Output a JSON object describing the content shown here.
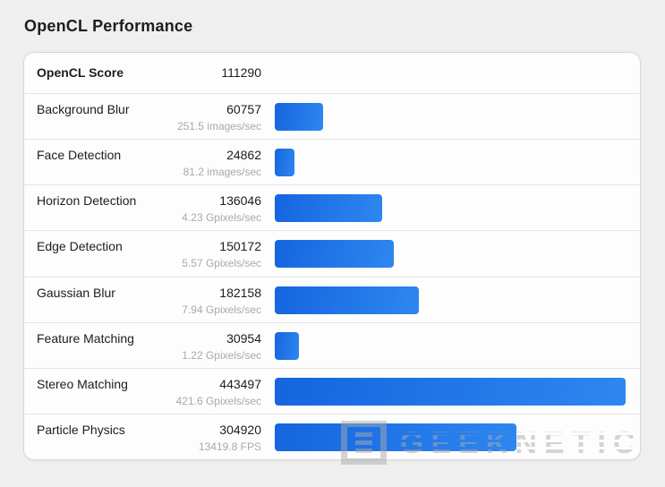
{
  "page": {
    "title": "OpenCL Performance",
    "background_color": "#efefef"
  },
  "card": {
    "header": {
      "label": "OpenCL Score",
      "value": "111290"
    },
    "rows": [
      {
        "label": "Background Blur",
        "value": 60757,
        "unit": "251.5 images/sec"
      },
      {
        "label": "Face Detection",
        "value": 24862,
        "unit": "81.2 images/sec"
      },
      {
        "label": "Horizon Detection",
        "value": 136046,
        "unit": "4.23 Gpixels/sec"
      },
      {
        "label": "Edge Detection",
        "value": 150172,
        "unit": "5.57 Gpixels/sec"
      },
      {
        "label": "Gaussian Blur",
        "value": 182158,
        "unit": "7.94 Gpixels/sec"
      },
      {
        "label": "Feature Matching",
        "value": 30954,
        "unit": "1.22 Gpixels/sec"
      },
      {
        "label": "Stereo Matching",
        "value": 443497,
        "unit": "421.6 Gpixels/sec"
      },
      {
        "label": "Particle Physics",
        "value": 304920,
        "unit": "13419.8 FPS"
      }
    ],
    "max_value": 443497,
    "bar_gradient": {
      "start": "#1565df",
      "end": "#2e87f0"
    }
  },
  "watermark": {
    "text": "GEEKNETIC",
    "logo_glyph": "E",
    "color": "rgba(170,170,170,0.5)"
  },
  "chart_data": {
    "type": "bar",
    "orientation": "horizontal",
    "title": "OpenCL Performance",
    "score_label": "OpenCL Score",
    "score": 111290,
    "categories": [
      "Background Blur",
      "Face Detection",
      "Horizon Detection",
      "Edge Detection",
      "Gaussian Blur",
      "Feature Matching",
      "Stereo Matching",
      "Particle Physics"
    ],
    "values": [
      60757,
      24862,
      136046,
      150172,
      182158,
      30954,
      443497,
      304920
    ],
    "rate_labels": [
      "251.5 images/sec",
      "81.2 images/sec",
      "4.23 Gpixels/sec",
      "5.57 Gpixels/sec",
      "7.94 Gpixels/sec",
      "1.22 Gpixels/sec",
      "421.6 Gpixels/sec",
      "13419.8 FPS"
    ],
    "xlim": [
      0,
      443497
    ],
    "grid": false,
    "legend": false,
    "bar_color": "#1e6fe8"
  }
}
